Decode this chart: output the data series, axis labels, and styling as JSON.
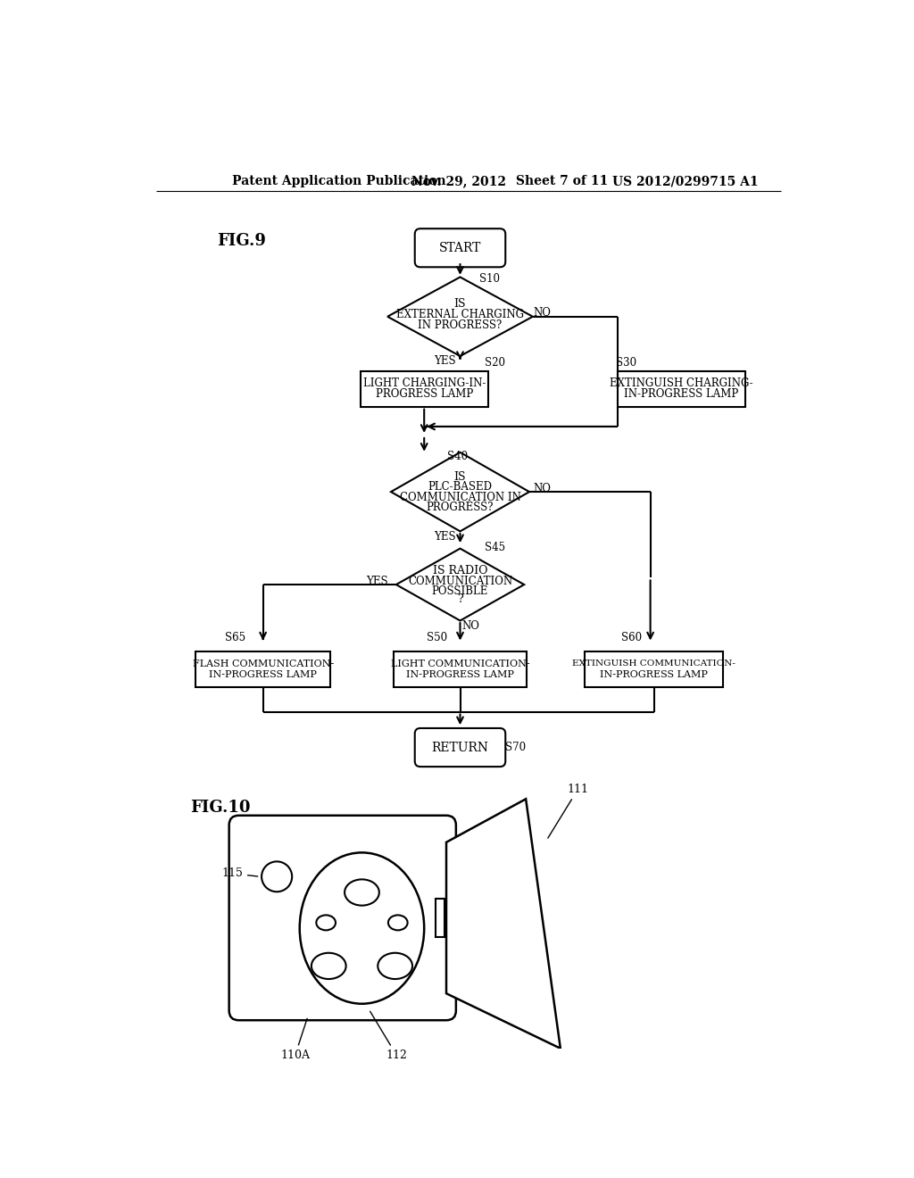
{
  "bg_color": "#ffffff",
  "header_left": "Patent Application Publication",
  "header_mid1": "Nov. 29, 2012",
  "header_mid2": "Sheet 7 of 11",
  "header_right": "US 2012/0299715 A1",
  "fig9_label": "FIG.9",
  "fig10_label": "FIG.10"
}
